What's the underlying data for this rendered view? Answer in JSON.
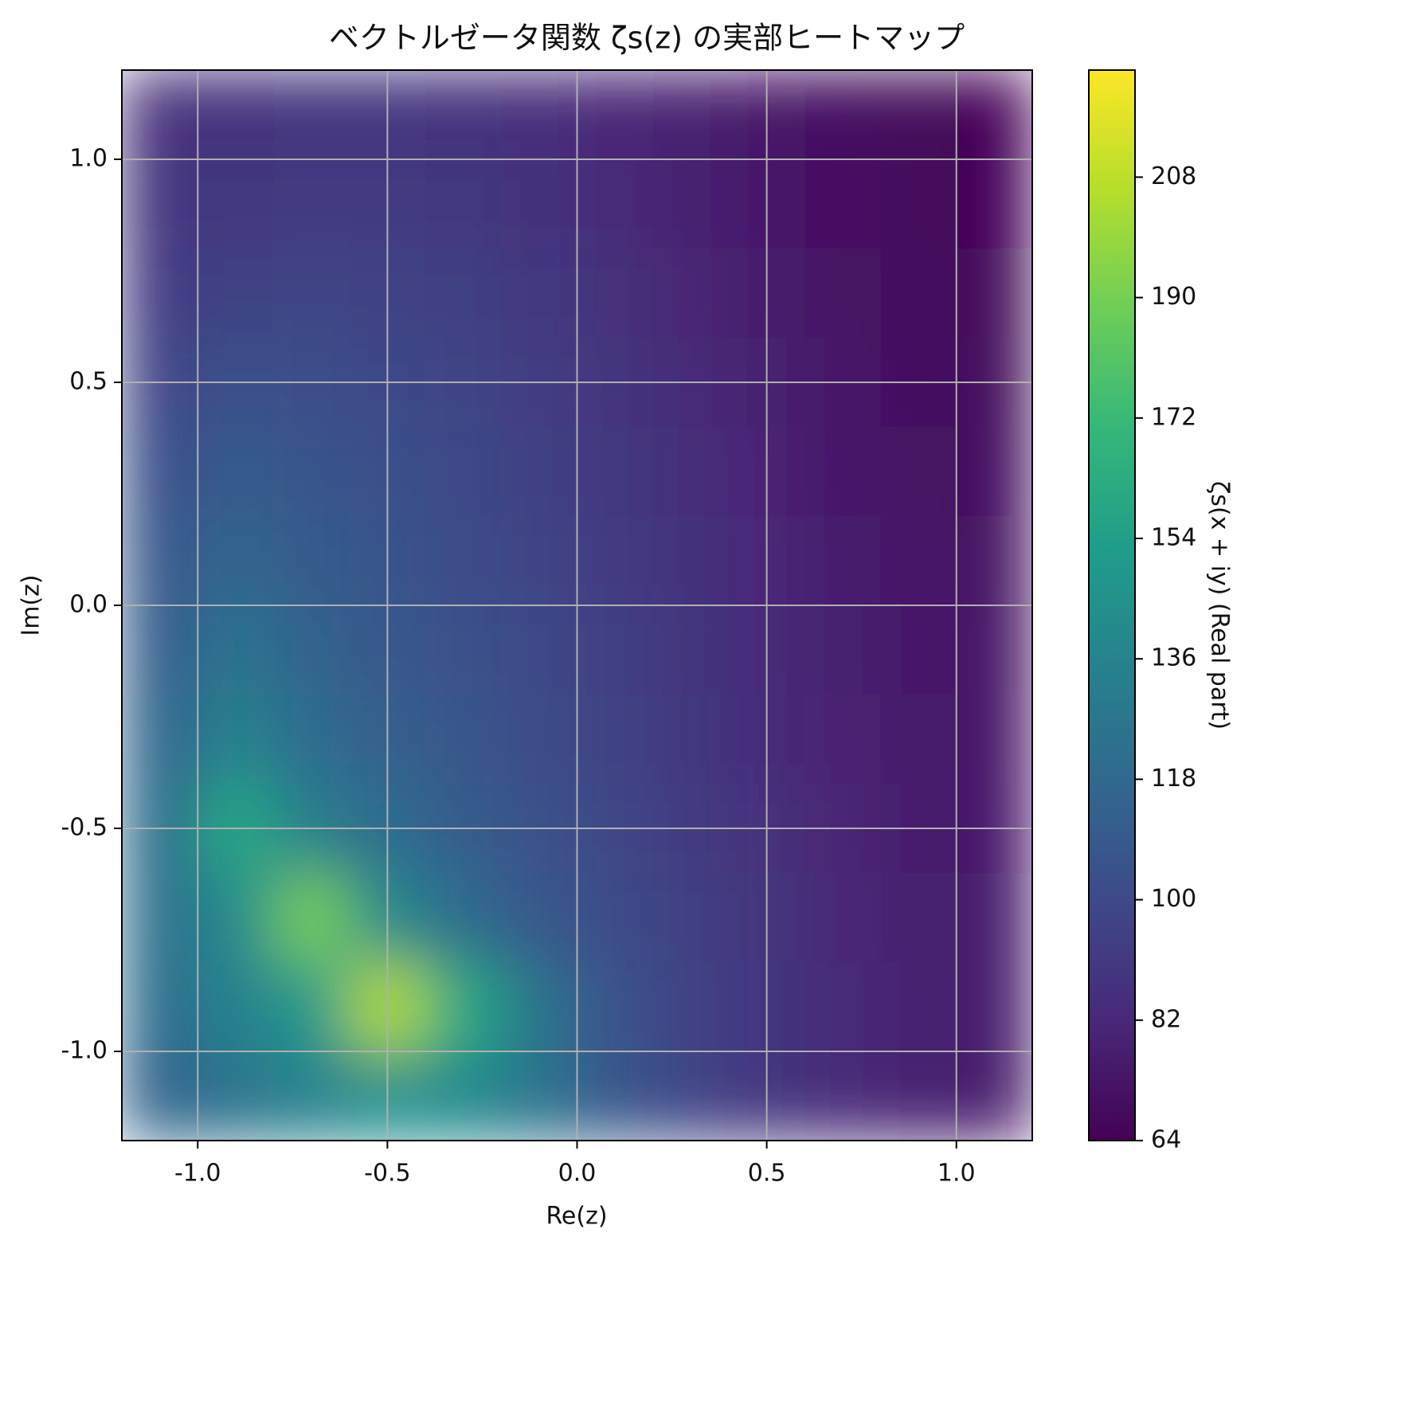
{
  "chart_data": {
    "type": "heatmap",
    "title": "ベクトルゼータ関数 ζs(z) の実部ヒートマップ",
    "xlabel": "Re(z)",
    "ylabel": "Im(z)",
    "colorbar_label": "ζs(x + iy) (Real part)",
    "x": [
      -1.1,
      -0.9,
      -0.7,
      -0.5,
      -0.3,
      -0.1,
      0.1,
      0.3,
      0.5,
      0.7,
      0.9,
      1.1
    ],
    "y": [
      1.1,
      0.9,
      0.7,
      0.5,
      0.3,
      0.1,
      -0.1,
      -0.3,
      -0.5,
      -0.7,
      -0.9,
      -1.1
    ],
    "z": [
      [
        86,
        87,
        88,
        88,
        87,
        85,
        82,
        78,
        74,
        70,
        67,
        65
      ],
      [
        88,
        90,
        92,
        92,
        90,
        87,
        83,
        79,
        75,
        71,
        68,
        66
      ],
      [
        92,
        96,
        97,
        96,
        94,
        90,
        86,
        81,
        76,
        72,
        69,
        67
      ],
      [
        97,
        104,
        102,
        100,
        97,
        93,
        88,
        83,
        78,
        74,
        70,
        68
      ],
      [
        103,
        110,
        106,
        103,
        99,
        95,
        90,
        85,
        80,
        75,
        72,
        70
      ],
      [
        108,
        116,
        110,
        106,
        101,
        97,
        92,
        87,
        82,
        77,
        74,
        72
      ],
      [
        112,
        125,
        115,
        109,
        104,
        99,
        94,
        88,
        83,
        78,
        75,
        73
      ],
      [
        116,
        135,
        121,
        113,
        107,
        101,
        96,
        90,
        84,
        80,
        76,
        74
      ],
      [
        120,
        160,
        133,
        120,
        111,
        104,
        98,
        92,
        86,
        81,
        77,
        75
      ],
      [
        122,
        140,
        190,
        140,
        120,
        109,
        101,
        94,
        88,
        82,
        78,
        76
      ],
      [
        120,
        135,
        150,
        205,
        160,
        125,
        105,
        96,
        89,
        83,
        79,
        76
      ],
      [
        115,
        125,
        135,
        145,
        140,
        125,
        107,
        97,
        89,
        83,
        79,
        76
      ]
    ],
    "xlim": [
      -1.2,
      1.2
    ],
    "ylim": [
      -1.2,
      1.2
    ],
    "xticks": [
      {
        "value": -1,
        "label": "-1.0"
      },
      -0.5,
      {
        "value": 0,
        "label": "0.0"
      },
      0.5,
      {
        "value": 1,
        "label": "1.0"
      }
    ],
    "yticks": [
      {
        "value": -1,
        "label": "-1.0"
      },
      -0.5,
      {
        "value": 0,
        "label": "0.0"
      },
      0.5,
      {
        "value": 1,
        "label": "1.0"
      }
    ],
    "clim": [
      64,
      224
    ],
    "cticks": [
      64,
      82,
      100,
      118,
      136,
      154,
      172,
      190,
      208
    ],
    "colormap": "viridis",
    "grid": true
  }
}
